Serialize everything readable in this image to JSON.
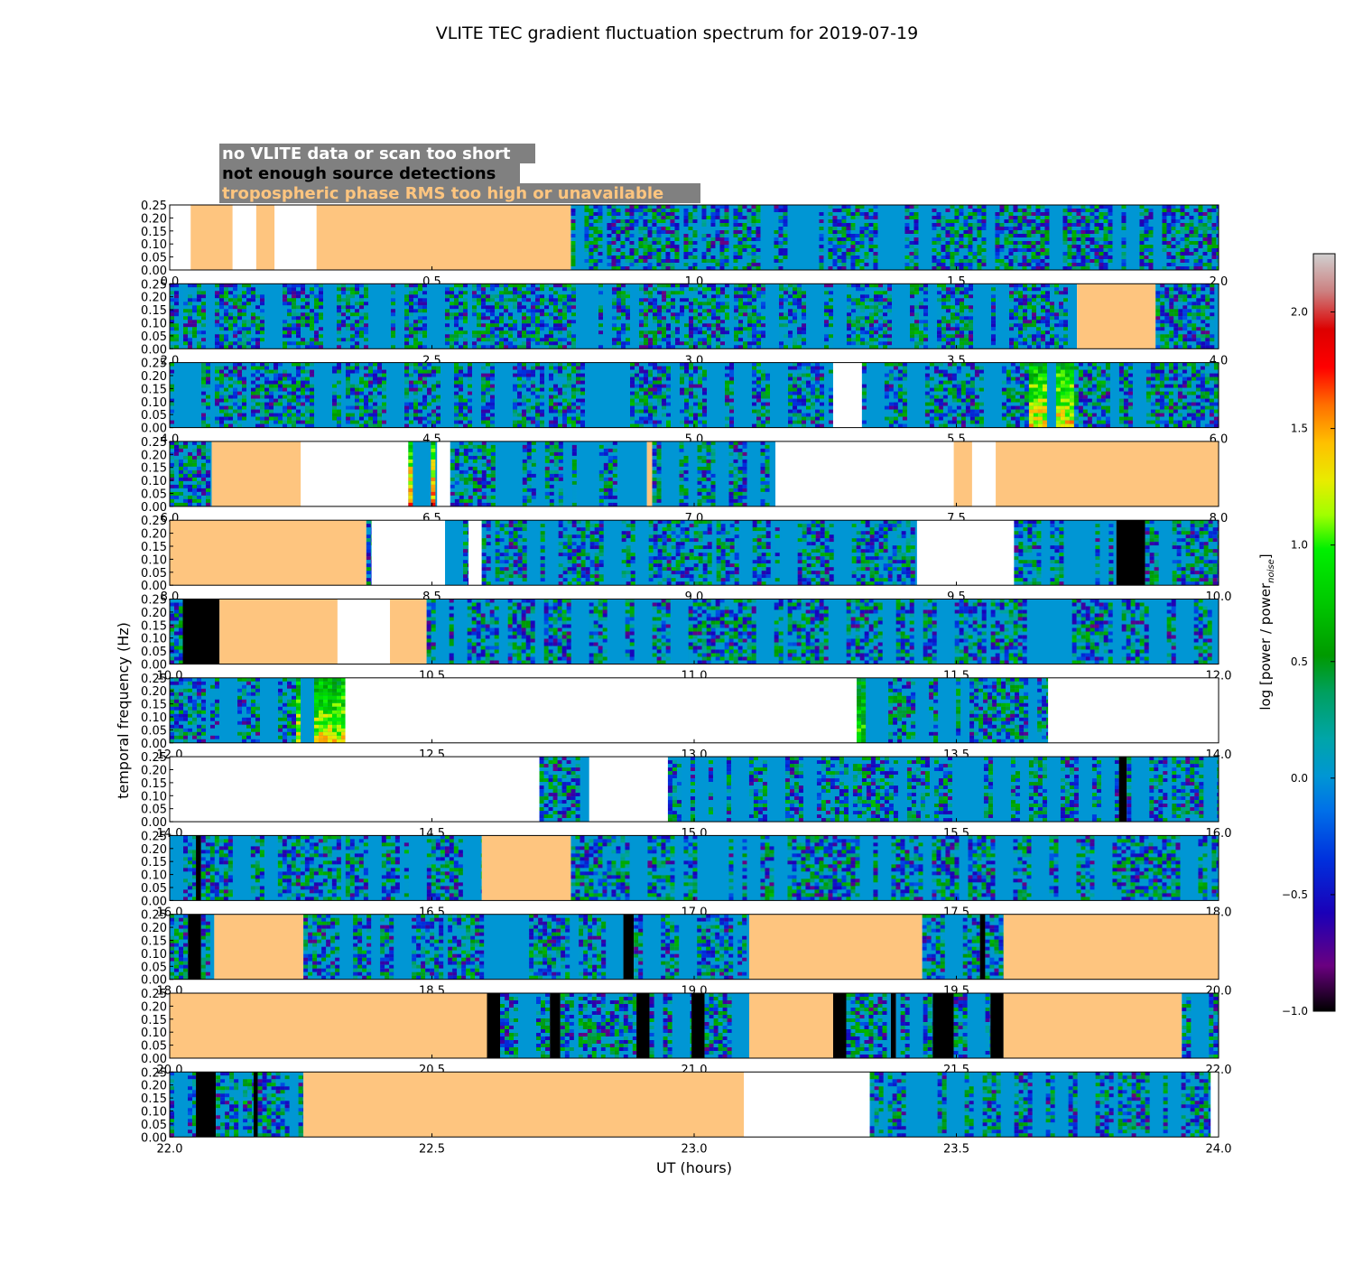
{
  "chart_data": {
    "type": "heatmap",
    "title": "VLITE TEC gradient fluctuation spectrum for 2019-07-19",
    "xlabel": "UT (hours)",
    "ylabel": "temporal frequency (Hz)",
    "ylim": [
      0,
      0.25
    ],
    "ytick_labels": [
      "0.00",
      "0.05",
      "0.10",
      "0.15",
      "0.20",
      "0.25"
    ],
    "colorbar": {
      "label_prefix": "log [power / power",
      "label_sub": "noise",
      "label_suffix": "]",
      "range": [
        -1.0,
        2.25
      ],
      "tick_labels": [
        "−1.0",
        "−0.5",
        "0.0",
        "0.5",
        "1.0",
        "1.5",
        "2.0"
      ],
      "tick_values": [
        -1.0,
        -0.5,
        0.0,
        0.5,
        1.0,
        1.5,
        2.0
      ]
    },
    "legend": {
      "placement": "top-left",
      "entries": [
        {
          "label": "no VLITE data or scan too short",
          "color": "#ffffff"
        },
        {
          "label": "not enough source detections",
          "color": "#000000"
        },
        {
          "label": "tropospheric phase RMS too high or unavailable",
          "color": "#fec57f"
        }
      ]
    },
    "panels": [
      {
        "xlim": [
          0.0,
          2.0
        ],
        "xtick_labels": [
          "0.0",
          "0.5",
          "1.0",
          "1.5",
          "2.0"
        ],
        "segments": [
          [
            0.0,
            0.04,
            "nodata"
          ],
          [
            0.04,
            0.12,
            "rms"
          ],
          [
            0.12,
            0.165,
            "nodata"
          ],
          [
            0.165,
            0.2,
            "rms"
          ],
          [
            0.2,
            0.28,
            "nodata"
          ],
          [
            0.28,
            0.765,
            "rms"
          ],
          [
            0.765,
            2.0,
            "spec"
          ]
        ]
      },
      {
        "xlim": [
          2.0,
          4.0
        ],
        "xtick_labels": [
          "2.0",
          "2.5",
          "3.0",
          "3.5",
          "4.0"
        ],
        "segments": [
          [
            2.0,
            3.73,
            "spec"
          ],
          [
            3.73,
            3.88,
            "rms"
          ],
          [
            3.88,
            4.0,
            "spec"
          ]
        ]
      },
      {
        "xlim": [
          4.0,
          6.0
        ],
        "xtick_labels": [
          "4.0",
          "4.5",
          "5.0",
          "5.5",
          "6.0"
        ],
        "segments": [
          [
            4.0,
            5.265,
            "spec"
          ],
          [
            5.265,
            5.32,
            "nodata"
          ],
          [
            5.32,
            6.0,
            "spec"
          ]
        ]
      },
      {
        "xlim": [
          6.0,
          8.0
        ],
        "xtick_labels": [
          "6.0",
          "6.5",
          "7.0",
          "7.5",
          "8.0"
        ],
        "segments": [
          [
            6.0,
            6.08,
            "spec"
          ],
          [
            6.08,
            6.25,
            "rms"
          ],
          [
            6.25,
            6.455,
            "nodata"
          ],
          [
            6.455,
            6.51,
            "spec"
          ],
          [
            6.51,
            6.535,
            "nodata"
          ],
          [
            6.535,
            6.91,
            "spec"
          ],
          [
            6.91,
            6.92,
            "rms"
          ],
          [
            6.92,
            7.155,
            "spec"
          ],
          [
            7.155,
            7.495,
            "nodata"
          ],
          [
            7.495,
            7.53,
            "rms"
          ],
          [
            7.53,
            7.575,
            "nodata"
          ],
          [
            7.575,
            8.0,
            "rms"
          ]
        ]
      },
      {
        "xlim": [
          8.0,
          10.0
        ],
        "xtick_labels": [
          "8.0",
          "8.5",
          "9.0",
          "9.5",
          "10.0"
        ],
        "segments": [
          [
            8.0,
            8.375,
            "rms"
          ],
          [
            8.375,
            8.385,
            "spec"
          ],
          [
            8.385,
            8.525,
            "nodata"
          ],
          [
            8.525,
            8.57,
            "spec"
          ],
          [
            8.57,
            8.595,
            "nodata"
          ],
          [
            8.595,
            9.425,
            "spec"
          ],
          [
            9.425,
            9.61,
            "nodata"
          ],
          [
            9.61,
            9.805,
            "spec"
          ],
          [
            9.805,
            9.86,
            "nodet"
          ],
          [
            9.86,
            10.0,
            "spec"
          ]
        ]
      },
      {
        "xlim": [
          10.0,
          12.0
        ],
        "xtick_labels": [
          "10.0",
          "10.5",
          "11.0",
          "11.5",
          "12.0"
        ],
        "segments": [
          [
            10.0,
            10.025,
            "spec"
          ],
          [
            10.025,
            10.095,
            "nodet"
          ],
          [
            10.095,
            10.32,
            "rms"
          ],
          [
            10.32,
            10.42,
            "nodata"
          ],
          [
            10.42,
            10.49,
            "rms"
          ],
          [
            10.49,
            12.0,
            "spec"
          ]
        ]
      },
      {
        "xlim": [
          12.0,
          14.0
        ],
        "xtick_labels": [
          "12.0",
          "12.5",
          "13.0",
          "13.5",
          "14.0"
        ],
        "segments": [
          [
            12.0,
            12.335,
            "spec"
          ],
          [
            12.335,
            13.31,
            "nodata"
          ],
          [
            13.31,
            13.675,
            "spec"
          ],
          [
            13.675,
            14.0,
            "nodata"
          ]
        ]
      },
      {
        "xlim": [
          14.0,
          16.0
        ],
        "xtick_labels": [
          "14.0",
          "14.5",
          "15.0",
          "15.5",
          "16.0"
        ],
        "segments": [
          [
            14.0,
            14.705,
            "nodata"
          ],
          [
            14.705,
            14.8,
            "spec"
          ],
          [
            14.8,
            14.95,
            "nodata"
          ],
          [
            14.95,
            15.81,
            "spec"
          ],
          [
            15.81,
            15.825,
            "nodet"
          ],
          [
            15.825,
            16.0,
            "spec"
          ]
        ]
      },
      {
        "xlim": [
          16.0,
          18.0
        ],
        "xtick_labels": [
          "16.0",
          "16.5",
          "17.0",
          "17.5",
          "18.0"
        ],
        "segments": [
          [
            16.0,
            16.05,
            "spec"
          ],
          [
            16.05,
            16.06,
            "nodet"
          ],
          [
            16.06,
            16.595,
            "spec"
          ],
          [
            16.595,
            16.765,
            "rms"
          ],
          [
            16.765,
            18.0,
            "spec"
          ]
        ]
      },
      {
        "xlim": [
          18.0,
          20.0
        ],
        "xtick_labels": [
          "18.0",
          "18.5",
          "19.0",
          "19.5",
          "20.0"
        ],
        "segments": [
          [
            18.0,
            18.035,
            "spec"
          ],
          [
            18.035,
            18.06,
            "nodet"
          ],
          [
            18.06,
            18.085,
            "spec"
          ],
          [
            18.085,
            18.255,
            "rms"
          ],
          [
            18.255,
            18.865,
            "spec"
          ],
          [
            18.865,
            18.885,
            "nodet"
          ],
          [
            18.885,
            19.105,
            "spec"
          ],
          [
            19.105,
            19.435,
            "rms"
          ],
          [
            19.435,
            19.545,
            "spec"
          ],
          [
            19.545,
            19.555,
            "nodet"
          ],
          [
            19.555,
            19.59,
            "spec"
          ],
          [
            19.59,
            20.0,
            "rms"
          ]
        ]
      },
      {
        "xlim": [
          20.0,
          22.0
        ],
        "xtick_labels": [
          "20.0",
          "20.5",
          "21.0",
          "21.5",
          "22.0"
        ],
        "segments": [
          [
            20.0,
            20.605,
            "rms"
          ],
          [
            20.605,
            20.63,
            "nodet"
          ],
          [
            20.63,
            20.725,
            "spec"
          ],
          [
            20.725,
            20.745,
            "nodet"
          ],
          [
            20.745,
            20.89,
            "spec"
          ],
          [
            20.89,
            20.915,
            "nodet"
          ],
          [
            20.915,
            20.995,
            "spec"
          ],
          [
            20.995,
            21.02,
            "nodet"
          ],
          [
            21.02,
            21.105,
            "spec"
          ],
          [
            21.105,
            21.265,
            "rms"
          ],
          [
            21.265,
            21.29,
            "nodet"
          ],
          [
            21.29,
            21.375,
            "spec"
          ],
          [
            21.375,
            21.385,
            "nodet"
          ],
          [
            21.385,
            21.455,
            "spec"
          ],
          [
            21.455,
            21.495,
            "nodet"
          ],
          [
            21.495,
            21.565,
            "spec"
          ],
          [
            21.565,
            21.59,
            "nodet"
          ],
          [
            21.59,
            21.93,
            "rms"
          ],
          [
            21.93,
            22.0,
            "spec"
          ]
        ]
      },
      {
        "xlim": [
          22.0,
          24.0
        ],
        "xtick_labels": [
          "22.0",
          "22.5",
          "23.0",
          "23.5",
          "24.0"
        ],
        "segments": [
          [
            22.0,
            22.05,
            "spec"
          ],
          [
            22.05,
            22.088,
            "nodet"
          ],
          [
            22.088,
            22.16,
            "spec"
          ],
          [
            22.16,
            22.168,
            "nodet"
          ],
          [
            22.168,
            22.255,
            "spec"
          ],
          [
            22.255,
            23.095,
            "rms"
          ],
          [
            23.095,
            23.335,
            "nodata"
          ],
          [
            23.335,
            23.985,
            "spec"
          ],
          [
            23.985,
            24.0,
            "nodata"
          ]
        ]
      }
    ],
    "hot_spots": [
      {
        "panel": 2,
        "x0": 5.63,
        "x1": 5.72,
        "level": 1.4
      },
      {
        "panel": 3,
        "x0": 6.455,
        "x1": 6.51,
        "level": 1.7
      },
      {
        "panel": 4,
        "x0": 8.525,
        "x1": 8.54,
        "level": 1.6
      },
      {
        "panel": 6,
        "x0": 12.24,
        "x1": 12.335,
        "level": 1.3
      },
      {
        "panel": 6,
        "x0": 13.31,
        "x1": 13.33,
        "level": 0.9
      }
    ]
  },
  "style": {
    "rms_color": "#fec57f",
    "nodet_color": "#000000",
    "nodata_color": "#ffffff",
    "legend_box_color": "#808080"
  }
}
